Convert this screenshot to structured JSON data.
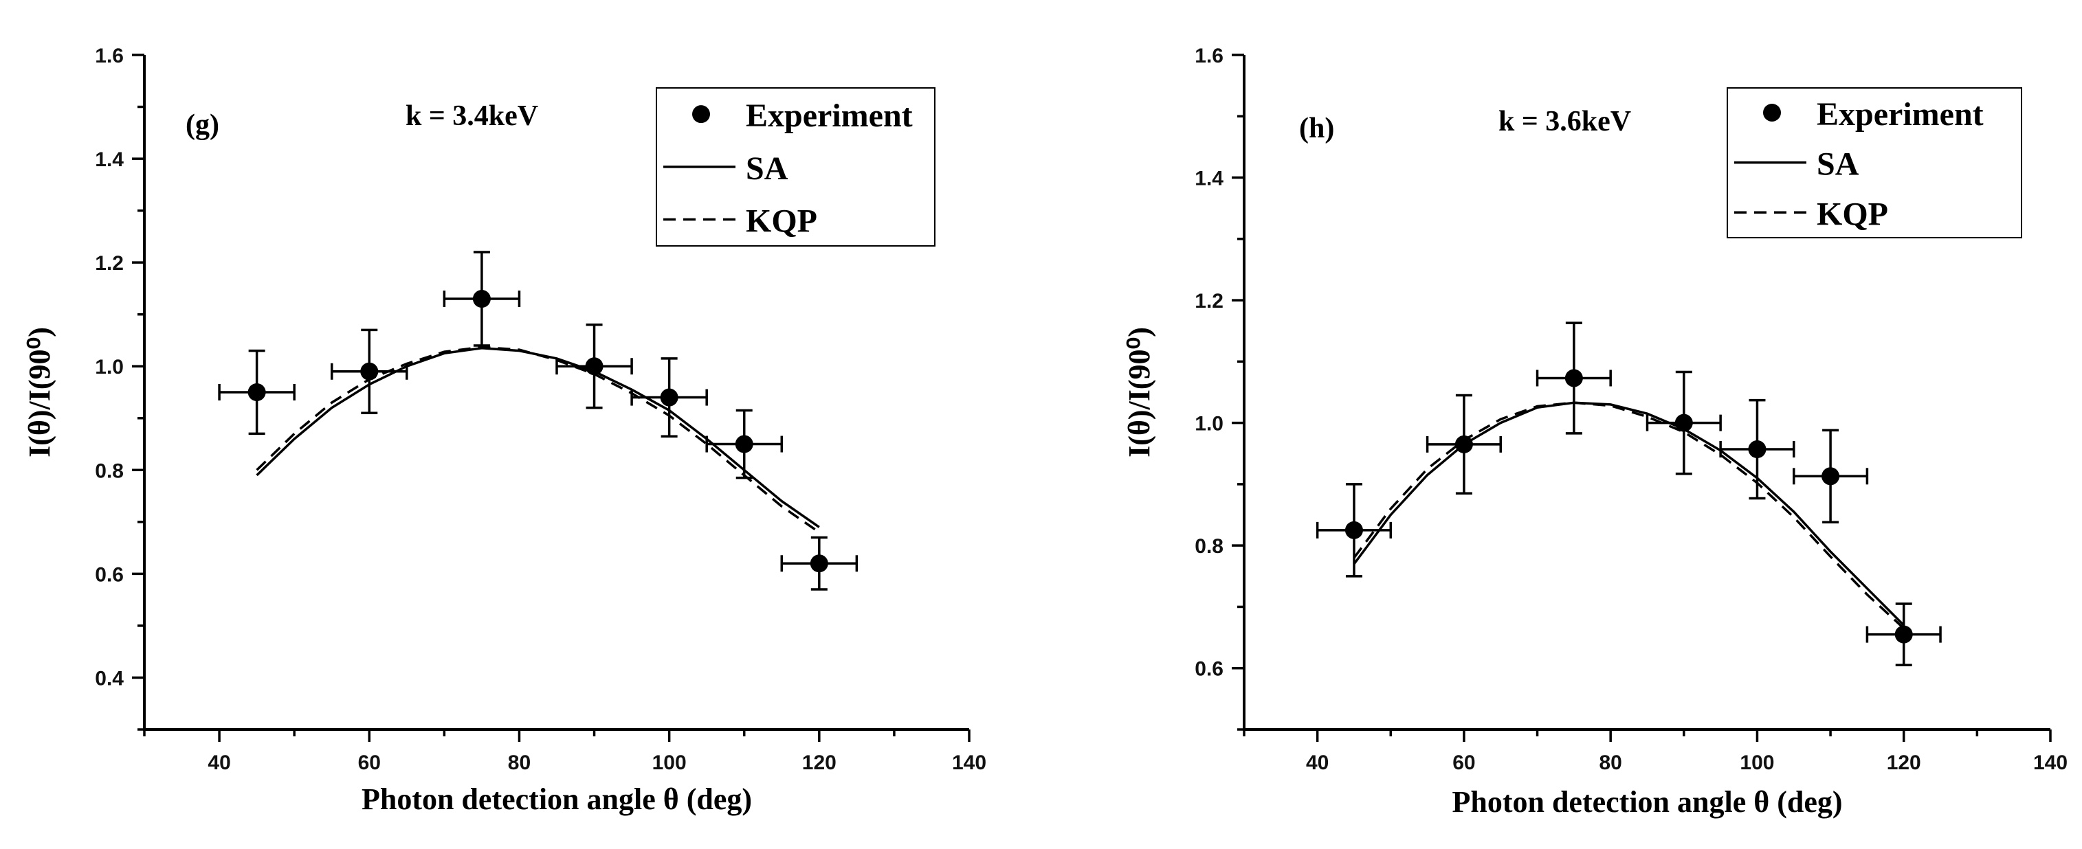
{
  "chart_data": [
    {
      "type": "scatter",
      "panel_label": "(g)",
      "annotation": "k = 3.4keV",
      "xlabel": "Photon detection angle θ (deg)",
      "ylabel": "I(θ)/I(90⁰)",
      "xlim": [
        30,
        140
      ],
      "ylim": [
        0.3,
        1.6
      ],
      "x_ticks": [
        "40",
        "60",
        "80",
        "100",
        "120",
        "140"
      ],
      "y_ticks": [
        "0.4",
        "0.6",
        "0.8",
        "1.0",
        "1.2",
        "1.4",
        "1.6"
      ],
      "legend": {
        "position": "top-right",
        "entries": [
          "Experiment",
          "SA",
          "KQP"
        ]
      },
      "series": [
        {
          "name": "Experiment",
          "style": "points-with-errorbars",
          "x": [
            45,
            60,
            75,
            90,
            100,
            110,
            120
          ],
          "y": [
            0.95,
            0.99,
            1.13,
            1.0,
            0.94,
            0.85,
            0.62
          ],
          "y_err": [
            0.08,
            0.08,
            0.09,
            0.08,
            0.075,
            0.065,
            0.05
          ],
          "x_err": [
            5,
            5,
            5,
            5,
            5,
            5,
            5
          ]
        },
        {
          "name": "SA",
          "style": "solid",
          "x": [
            45,
            50,
            55,
            60,
            65,
            70,
            75,
            80,
            85,
            90,
            95,
            100,
            105,
            110,
            115,
            120
          ],
          "y": [
            0.79,
            0.86,
            0.92,
            0.965,
            1.0,
            1.025,
            1.035,
            1.03,
            1.015,
            0.99,
            0.955,
            0.915,
            0.86,
            0.8,
            0.74,
            0.69
          ]
        },
        {
          "name": "KQP",
          "style": "dashed",
          "x": [
            45,
            50,
            55,
            60,
            65,
            70,
            75,
            80,
            85,
            90,
            95,
            100,
            105,
            110,
            115,
            120
          ],
          "y": [
            0.8,
            0.87,
            0.93,
            0.975,
            1.005,
            1.028,
            1.037,
            1.032,
            1.012,
            0.985,
            0.948,
            0.905,
            0.85,
            0.79,
            0.73,
            0.68
          ]
        }
      ]
    },
    {
      "type": "scatter",
      "panel_label": "(h)",
      "annotation": "k = 3.6keV",
      "xlabel": "Photon detection angle θ (deg)",
      "ylabel": "I(θ)/I(90⁰)",
      "xlim": [
        30,
        140
      ],
      "ylim": [
        0.5,
        1.6
      ],
      "x_ticks": [
        "40",
        "60",
        "80",
        "100",
        "120",
        "140"
      ],
      "y_ticks": [
        "0.6",
        "0.8",
        "1.0",
        "1.2",
        "1.4",
        "1.6"
      ],
      "legend": {
        "position": "top-right",
        "entries": [
          "Experiment",
          "SA",
          "KQP"
        ]
      },
      "series": [
        {
          "name": "Experiment",
          "style": "points-with-errorbars",
          "x": [
            45,
            60,
            75,
            90,
            100,
            110,
            120
          ],
          "y": [
            0.825,
            0.965,
            1.073,
            1.0,
            0.957,
            0.913,
            0.655
          ],
          "y_err": [
            0.075,
            0.08,
            0.09,
            0.083,
            0.08,
            0.075,
            0.05
          ],
          "x_err": [
            5,
            5,
            5,
            5,
            5,
            5,
            5
          ]
        },
        {
          "name": "SA",
          "style": "solid",
          "x": [
            45,
            50,
            55,
            60,
            65,
            70,
            75,
            80,
            85,
            90,
            95,
            100,
            105,
            110,
            115,
            120
          ],
          "y": [
            0.77,
            0.85,
            0.915,
            0.965,
            1.0,
            1.025,
            1.033,
            1.03,
            1.015,
            0.99,
            0.955,
            0.91,
            0.855,
            0.79,
            0.73,
            0.67
          ]
        },
        {
          "name": "KQP",
          "style": "dashed",
          "x": [
            45,
            50,
            55,
            60,
            65,
            70,
            75,
            80,
            85,
            90,
            95,
            100,
            105,
            110,
            115,
            120
          ],
          "y": [
            0.78,
            0.86,
            0.925,
            0.972,
            1.006,
            1.027,
            1.033,
            1.028,
            1.01,
            0.985,
            0.948,
            0.902,
            0.846,
            0.782,
            0.72,
            0.665
          ]
        }
      ]
    }
  ]
}
